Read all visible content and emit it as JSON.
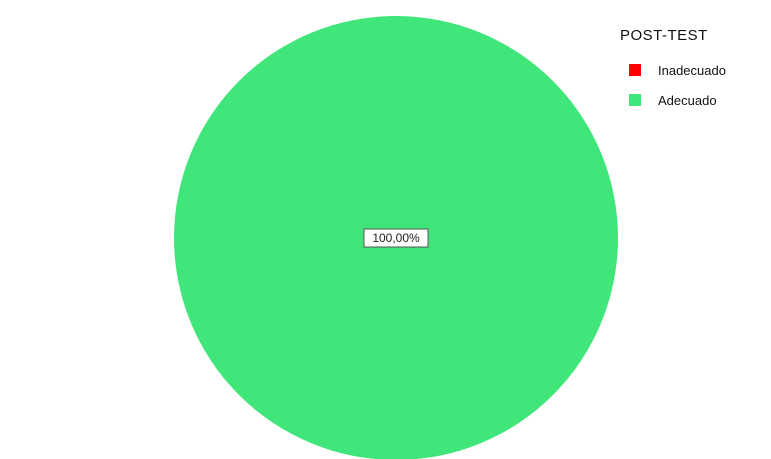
{
  "chart_data": {
    "type": "pie",
    "categories": [
      "Inadecuado",
      "Adecuado"
    ],
    "values": [
      0,
      100
    ],
    "colors": [
      "#ff0000",
      "#41e67a"
    ],
    "data_labels": [
      "",
      "100,00%"
    ],
    "legend_title": "POST-TEST",
    "legend_placement": "top-right"
  }
}
